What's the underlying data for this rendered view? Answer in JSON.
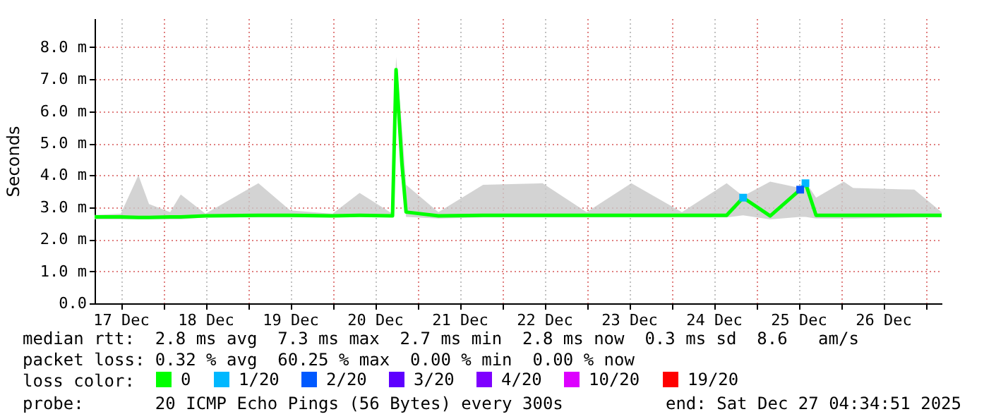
{
  "chart_data": {
    "type": "line",
    "ylabel": "Seconds",
    "legend_title": "loss color:",
    "legend": "bottom",
    "grid": true,
    "xlim": [
      "2025-12-17T04:35",
      "2025-12-27T04:35"
    ],
    "xticks": [
      {
        "value": "2025-12-17T12:00",
        "label": "17 Dec"
      },
      {
        "value": "2025-12-18T00:00",
        "label": null
      },
      {
        "value": "2025-12-18T12:00",
        "label": "18 Dec"
      },
      {
        "value": "2025-12-19T00:00",
        "label": null
      },
      {
        "value": "2025-12-19T12:00",
        "label": "19 Dec"
      },
      {
        "value": "2025-12-20T00:00",
        "label": null
      },
      {
        "value": "2025-12-20T12:00",
        "label": "20 Dec"
      },
      {
        "value": "2025-12-21T00:00",
        "label": null
      },
      {
        "value": "2025-12-21T12:00",
        "label": "21 Dec"
      },
      {
        "value": "2025-12-22T00:00",
        "label": null
      },
      {
        "value": "2025-12-22T12:00",
        "label": "22 Dec"
      },
      {
        "value": "2025-12-23T00:00",
        "label": null
      },
      {
        "value": "2025-12-23T12:00",
        "label": "23 Dec"
      },
      {
        "value": "2025-12-24T00:00",
        "label": null
      },
      {
        "value": "2025-12-24T12:00",
        "label": "24 Dec"
      },
      {
        "value": "2025-12-25T00:00",
        "label": null
      },
      {
        "value": "2025-12-25T12:00",
        "label": "25 Dec"
      },
      {
        "value": "2025-12-26T00:00",
        "label": null
      },
      {
        "value": "2025-12-26T12:00",
        "label": "26 Dec"
      },
      {
        "value": "2025-12-27T00:00",
        "label": null
      }
    ],
    "ylim": [
      0,
      8.9
    ],
    "yticks": [
      {
        "value": 0,
        "label": "0.0"
      },
      {
        "value": 1,
        "label": "1.0 m"
      },
      {
        "value": 2,
        "label": "2.0 m"
      },
      {
        "value": 3,
        "label": "3.0 m"
      },
      {
        "value": 4,
        "label": "4.0 m"
      },
      {
        "value": 5,
        "label": "5.0 m"
      },
      {
        "value": 6,
        "label": "6.0 m"
      },
      {
        "value": 7,
        "label": "7.0 m"
      },
      {
        "value": 8,
        "label": "8.0 m"
      }
    ],
    "x": [
      "2025-12-17T04:35",
      "2025-12-17T12:00",
      "2025-12-17T17:00",
      "2025-12-17T20:00",
      "2025-12-18T02:00",
      "2025-12-18T05:00",
      "2025-12-18T12:00",
      "2025-12-19T03:00",
      "2025-12-19T12:00",
      "2025-12-20T00:00",
      "2025-12-20T07:40",
      "2025-12-20T17:00",
      "2025-12-20T18:00",
      "2025-12-20T19:40",
      "2025-12-20T20:50",
      "2025-12-21T06:00",
      "2025-12-21T18:40",
      "2025-12-22T11:30",
      "2025-12-23T00:00",
      "2025-12-23T12:40",
      "2025-12-24T03:00",
      "2025-12-24T15:40",
      "2025-12-24T20:20",
      "2025-12-25T04:00",
      "2025-12-25T12:30",
      "2025-12-25T14:00",
      "2025-12-25T17:00",
      "2025-12-26T00:50",
      "2025-12-26T03:30",
      "2025-12-26T20:50",
      "2025-12-27T04:35"
    ],
    "series": [
      {
        "name": "0",
        "color": "#00ff00",
        "values": [
          2.7,
          2.7,
          2.68,
          2.68,
          2.7,
          2.7,
          2.73,
          2.75,
          2.75,
          2.73,
          2.75,
          2.73,
          7.3,
          4.35,
          2.85,
          2.73,
          2.75,
          2.75,
          2.75,
          2.75,
          2.75,
          2.75,
          3.3,
          2.73,
          3.55,
          3.75,
          2.75,
          2.75,
          2.75,
          2.75,
          2.75
        ],
        "lower": [
          2.62,
          2.62,
          2.62,
          2.62,
          2.62,
          2.62,
          2.68,
          2.68,
          2.68,
          2.68,
          2.7,
          2.7,
          6.9,
          3.8,
          2.7,
          2.65,
          2.68,
          2.68,
          2.68,
          2.68,
          2.68,
          2.68,
          2.75,
          2.62,
          2.7,
          2.7,
          2.65,
          2.65,
          2.65,
          2.68,
          2.68
        ],
        "upper": [
          2.76,
          2.8,
          4.0,
          3.1,
          2.85,
          3.4,
          2.8,
          3.75,
          2.9,
          2.8,
          3.45,
          2.8,
          7.7,
          5.5,
          3.7,
          2.85,
          3.7,
          3.75,
          2.85,
          3.75,
          2.85,
          3.75,
          3.35,
          3.8,
          3.6,
          3.8,
          3.3,
          3.8,
          3.6,
          3.55,
          2.85
        ]
      },
      {
        "name": "1/20",
        "type": "scatter",
        "marker": "square",
        "color": "#00b8ff",
        "values": [
          null,
          null,
          null,
          null,
          null,
          null,
          null,
          null,
          null,
          null,
          null,
          null,
          null,
          null,
          null,
          null,
          null,
          null,
          null,
          null,
          null,
          null,
          3.3,
          null,
          null,
          3.75,
          null,
          null,
          null,
          null,
          null
        ]
      },
      {
        "name": "2/20",
        "type": "scatter",
        "marker": "square",
        "color": "#0059ff",
        "values": [
          null,
          null,
          null,
          null,
          null,
          null,
          null,
          null,
          null,
          null,
          null,
          null,
          null,
          null,
          null,
          null,
          null,
          null,
          null,
          null,
          null,
          null,
          null,
          null,
          3.55,
          null,
          null,
          null,
          null,
          null,
          null
        ]
      },
      {
        "name": "3/20",
        "type": "scatter",
        "marker": "square",
        "color": "#5e00ff",
        "values": [
          null,
          null,
          null,
          null,
          null,
          null,
          null,
          null,
          null,
          null,
          null,
          null,
          null,
          null,
          null,
          null,
          null,
          null,
          null,
          null,
          null,
          null,
          null,
          null,
          null,
          null,
          null,
          null,
          null,
          null,
          null
        ]
      },
      {
        "name": "4/20",
        "type": "scatter",
        "marker": "square",
        "color": "#7e00ff",
        "values": [
          null,
          null,
          null,
          null,
          null,
          null,
          null,
          null,
          null,
          null,
          null,
          null,
          null,
          null,
          null,
          null,
          null,
          null,
          null,
          null,
          null,
          null,
          null,
          null,
          null,
          null,
          null,
          null,
          null,
          null,
          null
        ]
      },
      {
        "name": "10/20",
        "type": "scatter",
        "marker": "square",
        "color": "#dd00ff",
        "values": [
          null,
          null,
          null,
          null,
          null,
          null,
          null,
          null,
          null,
          null,
          null,
          null,
          null,
          null,
          null,
          null,
          null,
          null,
          null,
          null,
          null,
          null,
          null,
          null,
          null,
          null,
          null,
          null,
          null,
          null,
          null
        ]
      },
      {
        "name": "19/20",
        "type": "scatter",
        "marker": "square",
        "color": "#ff0000",
        "values": [
          null,
          null,
          null,
          null,
          null,
          null,
          null,
          null,
          null,
          null,
          null,
          null,
          null,
          null,
          null,
          null,
          null,
          null,
          null,
          null,
          null,
          null,
          null,
          null,
          null,
          null,
          null,
          null,
          null,
          null,
          null
        ]
      }
    ],
    "annotations": [
      "median rtt:  2.8 ms avg  7.3 ms max  2.7 ms min  2.8 ms now  0.3 ms sd  8.6   am/s",
      "packet loss: 0.32 % avg  60.25 % max  0.00 % min  0.00 % now",
      "probe:       20 ICMP Echo Pings (56 Bytes) every 300s",
      "end: Sat Dec 27 04:34:51 2025"
    ]
  }
}
